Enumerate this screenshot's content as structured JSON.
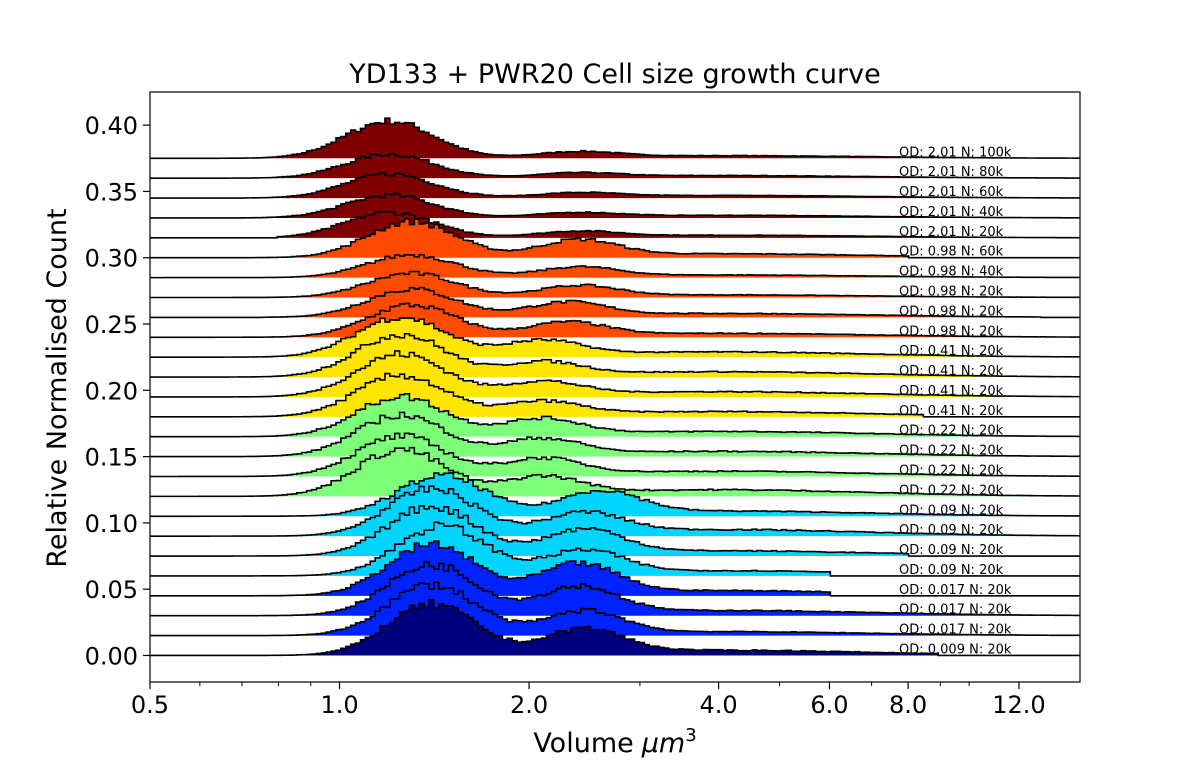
{
  "chart_data": {
    "type": "area",
    "title": "YD133 + PWR20 Cell size growth curve",
    "xlabel": "Volume",
    "xlabel_unit": "μm",
    "xlabel_unit_power": "3",
    "ylabel": "Relative Normalised Count",
    "x_scale": "log",
    "xlim": [
      0.5,
      15.0
    ],
    "ylim": [
      -0.02,
      0.425
    ],
    "x_ticks": [
      0.5,
      1.0,
      2.0,
      4.0,
      6.0,
      8.0,
      12.0
    ],
    "x_tick_labels": [
      "0.5",
      "1.0",
      "2.0",
      "4.0",
      "6.0",
      "8.0",
      "12.0"
    ],
    "y_ticks": [
      0.0,
      0.05,
      0.1,
      0.15,
      0.2,
      0.25,
      0.3,
      0.35,
      0.4
    ],
    "y_tick_labels": [
      "0.00",
      "0.05",
      "0.10",
      "0.15",
      "0.20",
      "0.25",
      "0.30",
      "0.35",
      "0.40"
    ],
    "grid": false,
    "series": [
      {
        "name": "OD: 0.009 N: 20k",
        "offset": 0.0,
        "color": "#00007f",
        "peak1": [
          1.4,
          0.038
        ],
        "peak2": [
          2.45,
          0.018
        ],
        "tail": 0.004,
        "edge": 0.7,
        "upper": 9.0
      },
      {
        "name": "OD: 0.017 N: 20k",
        "offset": 0.015,
        "color": "#0022ff",
        "peak1": [
          1.4,
          0.038
        ],
        "peak2": [
          2.45,
          0.017
        ],
        "tail": 0.003,
        "edge": 0.5,
        "upper": 15.0
      },
      {
        "name": "OD: 0.017 N: 20k",
        "offset": 0.03,
        "color": "#0022ff",
        "peak1": [
          1.4,
          0.038
        ],
        "peak2": [
          2.4,
          0.02
        ],
        "tail": 0.004,
        "edge": 0.5,
        "upper": 15.0
      },
      {
        "name": "OD: 0.017 N: 20k",
        "offset": 0.045,
        "color": "#0022ff",
        "peak1": [
          1.4,
          0.038
        ],
        "peak2": [
          2.4,
          0.022
        ],
        "tail": 0.004,
        "edge": 0.5,
        "upper": 6.0
      },
      {
        "name": "OD: 0.09 N: 20k",
        "offset": 0.06,
        "color": "#00d4ff",
        "peak1": [
          1.45,
          0.037
        ],
        "peak2": [
          2.45,
          0.017
        ],
        "tail": 0.004,
        "edge": 0.7,
        "upper": 6.0
      },
      {
        "name": "OD: 0.09 N: 20k",
        "offset": 0.075,
        "color": "#00d4ff",
        "peak1": [
          1.4,
          0.037
        ],
        "peak2": [
          2.45,
          0.018
        ],
        "tail": 0.004,
        "edge": 0.5,
        "upper": 8.0
      },
      {
        "name": "OD: 0.09 N: 20k",
        "offset": 0.09,
        "color": "#00d4ff",
        "peak1": [
          1.4,
          0.035
        ],
        "peak2": [
          2.45,
          0.015
        ],
        "tail": 0.005,
        "edge": 0.5,
        "upper": 15.0
      },
      {
        "name": "OD: 0.09 N: 20k",
        "offset": 0.105,
        "color": "#00d4ff",
        "peak1": [
          1.45,
          0.03
        ],
        "peak2": [
          2.6,
          0.017
        ],
        "tail": 0.004,
        "edge": 0.6,
        "upper": 15.0
      },
      {
        "name": "OD: 0.22 N: 20k",
        "offset": 0.12,
        "color": "#7dff7a",
        "peak1": [
          1.25,
          0.035
        ],
        "peak2": [
          2.1,
          0.013
        ],
        "tail": 0.005,
        "edge": 0.5,
        "upper": 15.0
      },
      {
        "name": "OD: 0.22 N: 20k",
        "offset": 0.135,
        "color": "#7dff7a",
        "peak1": [
          1.25,
          0.03
        ],
        "peak2": [
          2.1,
          0.012
        ],
        "tail": 0.004,
        "edge": 0.5,
        "upper": 15.0
      },
      {
        "name": "OD: 0.22 N: 20k",
        "offset": 0.15,
        "color": "#7dff7a",
        "peak1": [
          1.25,
          0.031
        ],
        "peak2": [
          2.1,
          0.012
        ],
        "tail": 0.004,
        "edge": 0.5,
        "upper": 15.0
      },
      {
        "name": "OD: 0.22 N: 20k",
        "offset": 0.165,
        "color": "#7dff7a",
        "peak1": [
          1.25,
          0.03
        ],
        "peak2": [
          2.1,
          0.012
        ],
        "tail": 0.004,
        "edge": 0.5,
        "upper": 15.0
      },
      {
        "name": "OD: 0.41 N: 20k",
        "offset": 0.18,
        "color": "#ffe600",
        "peak1": [
          1.25,
          0.031
        ],
        "peak2": [
          2.1,
          0.01
        ],
        "tail": 0.004,
        "edge": 0.55,
        "upper": 8.5
      },
      {
        "name": "OD: 0.41 N: 20k",
        "offset": 0.195,
        "color": "#ffe600",
        "peak1": [
          1.25,
          0.032
        ],
        "peak2": [
          2.1,
          0.01
        ],
        "tail": 0.004,
        "edge": 0.55,
        "upper": 15.0
      },
      {
        "name": "OD: 0.41 N: 20k",
        "offset": 0.21,
        "color": "#ffe600",
        "peak1": [
          1.25,
          0.032
        ],
        "peak2": [
          2.1,
          0.01
        ],
        "tail": 0.004,
        "edge": 0.55,
        "upper": 15.0
      },
      {
        "name": "OD: 0.41 N: 20k",
        "offset": 0.225,
        "color": "#ffe600",
        "peak1": [
          1.25,
          0.03
        ],
        "peak2": [
          2.1,
          0.011
        ],
        "tail": 0.004,
        "edge": 0.5,
        "upper": 15.0
      },
      {
        "name": "OD: 0.98 N: 20k",
        "offset": 0.24,
        "color": "#ff4a00",
        "peak1": [
          1.3,
          0.024
        ],
        "peak2": [
          2.3,
          0.01
        ],
        "tail": 0.003,
        "edge": 0.5,
        "upper": 15.0
      },
      {
        "name": "OD: 0.98 N: 20k",
        "offset": 0.255,
        "color": "#ff4a00",
        "peak1": [
          1.3,
          0.021
        ],
        "peak2": [
          2.3,
          0.01
        ],
        "tail": 0.003,
        "edge": 0.75,
        "upper": 13.0
      },
      {
        "name": "OD: 0.98 N: 20k",
        "offset": 0.27,
        "color": "#ff4a00",
        "peak1": [
          1.3,
          0.018
        ],
        "peak2": [
          2.4,
          0.008
        ],
        "tail": 0.002,
        "edge": 0.5,
        "upper": 15.0
      },
      {
        "name": "OD: 0.98 N: 40k",
        "offset": 0.285,
        "color": "#ff4a00",
        "peak1": [
          1.3,
          0.017
        ],
        "peak2": [
          2.4,
          0.007
        ],
        "tail": 0.002,
        "edge": 0.5,
        "upper": 15.0
      },
      {
        "name": "OD: 0.98 N: 60k",
        "offset": 0.3,
        "color": "#ff4a00",
        "peak1": [
          1.3,
          0.027
        ],
        "peak2": [
          2.4,
          0.012
        ],
        "tail": 0.003,
        "edge": 0.6,
        "upper": 8.0
      },
      {
        "name": "OD: 2.01 N: 20k",
        "offset": 0.315,
        "color": "#7f0000",
        "peak1": [
          1.2,
          0.019
        ],
        "peak2": [
          2.4,
          0.004
        ],
        "tail": 0.002,
        "edge": 0.8,
        "upper": 15.0
      },
      {
        "name": "OD: 2.01 N: 40k",
        "offset": 0.33,
        "color": "#7f0000",
        "peak1": [
          1.2,
          0.017
        ],
        "peak2": [
          2.4,
          0.003
        ],
        "tail": 0.002,
        "edge": 0.7,
        "upper": 15.0
      },
      {
        "name": "OD: 2.01 N: 60k",
        "offset": 0.345,
        "color": "#7f0000",
        "peak1": [
          1.2,
          0.018
        ],
        "peak2": [
          2.4,
          0.003
        ],
        "tail": 0.002,
        "edge": 0.7,
        "upper": 15.0
      },
      {
        "name": "OD: 2.01 N: 80k",
        "offset": 0.36,
        "color": "#7f0000",
        "peak1": [
          1.2,
          0.018
        ],
        "peak2": [
          2.4,
          0.003
        ],
        "tail": 0.002,
        "edge": 0.5,
        "upper": 15.0
      },
      {
        "name": "OD: 2.01 N: 100k",
        "offset": 0.375,
        "color": "#7f0000",
        "peak1": [
          1.2,
          0.028
        ],
        "peak2": [
          2.4,
          0.004
        ],
        "tail": 0.002,
        "edge": 0.5,
        "upper": 15.0
      }
    ]
  }
}
